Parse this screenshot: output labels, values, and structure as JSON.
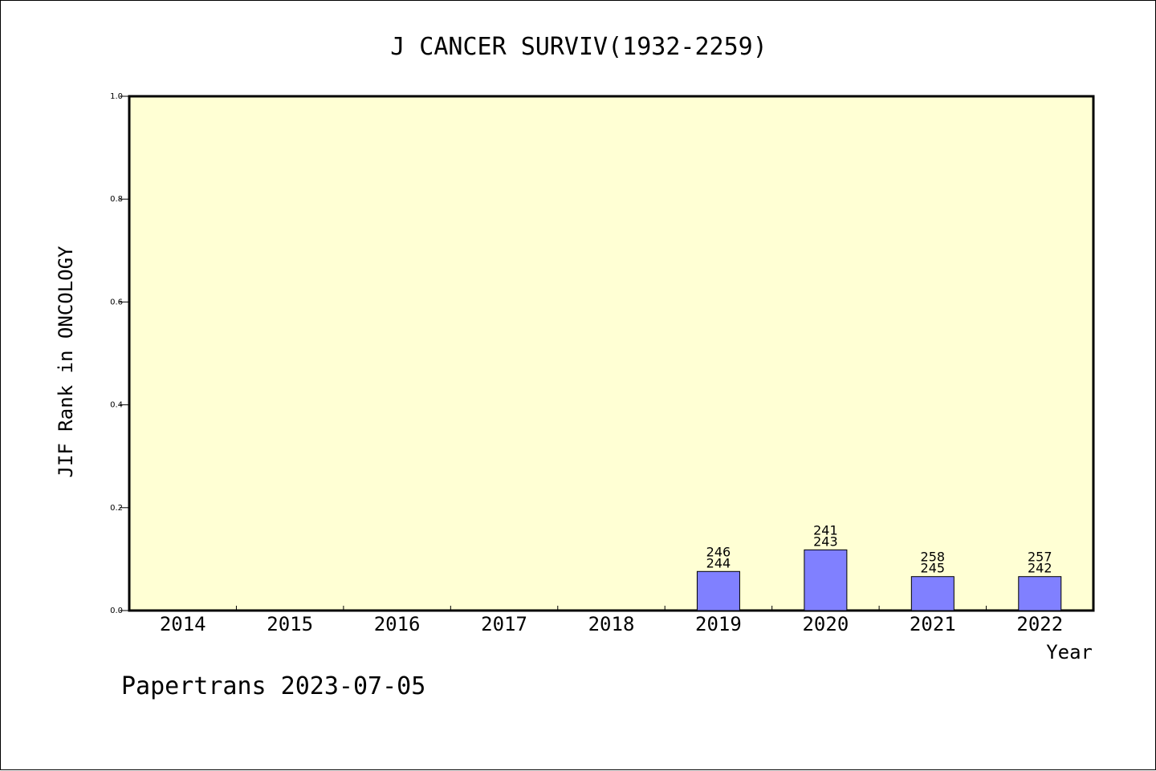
{
  "title": "J CANCER SURVIV(1932-2259)",
  "footer": "Papertrans 2023-07-05",
  "colors": {
    "plot_background": "#ffffd4",
    "bar_fill": "#8080ff",
    "axis": "#000000"
  },
  "chart_data": {
    "type": "bar",
    "title": "J CANCER SURVIV(1932-2259)",
    "xlabel": "Year",
    "ylabel": "JIF Rank in ONCOLOGY",
    "ylim": [
      0,
      1.0
    ],
    "yticks": [
      "0.0",
      "0.2",
      "0.4",
      "0.6",
      "0.8",
      "1.0"
    ],
    "categories": [
      "2014",
      "2015",
      "2016",
      "2017",
      "2018",
      "2019",
      "2020",
      "2021",
      "2022"
    ],
    "values": [
      null,
      null,
      null,
      null,
      null,
      0.076,
      0.118,
      0.066,
      0.066
    ],
    "bar_labels": [
      null,
      null,
      null,
      null,
      null,
      [
        "246",
        "244"
      ],
      [
        "241",
        "243"
      ],
      [
        "258",
        "245"
      ],
      [
        "257",
        "242"
      ]
    ],
    "grid": false
  }
}
